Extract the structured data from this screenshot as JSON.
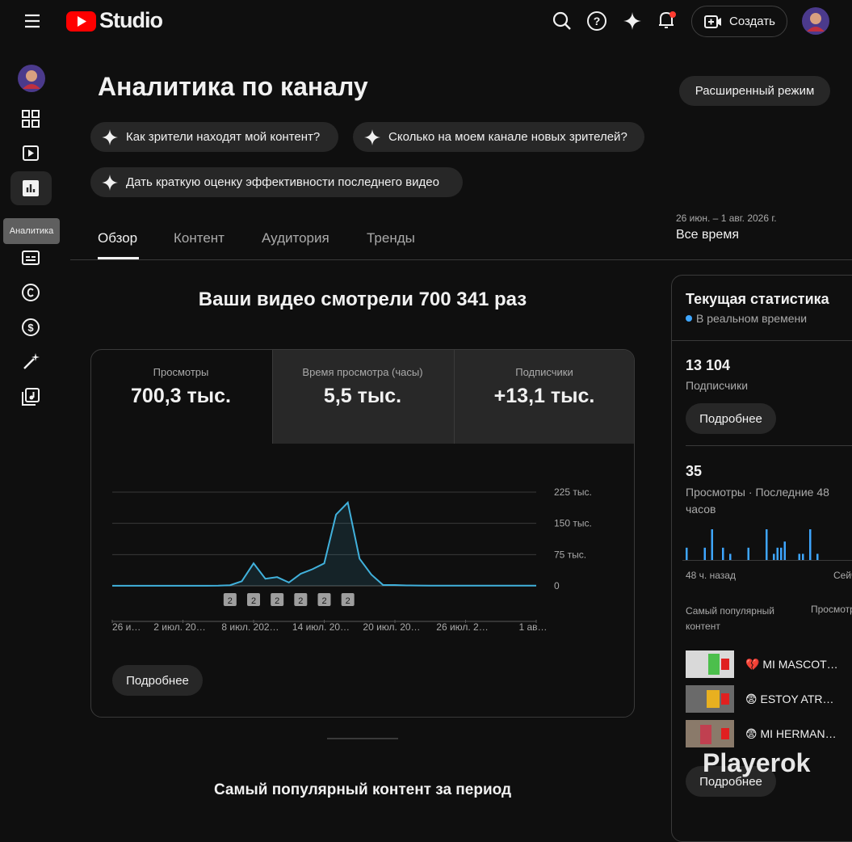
{
  "header": {
    "logo": "Studio",
    "create_button": "Создать"
  },
  "sidebar": {
    "tooltip": "Аналитика"
  },
  "page": {
    "title": "Аналитика по каналу",
    "advanced_button": "Расширенный режим",
    "chips": [
      "Как зрители находят мой контент?",
      "Сколько на моем канале новых зрителей?",
      "Дать краткую оценку эффективности последнего видео"
    ],
    "date_range": "26 июн. – 1 авг. 2026 г.",
    "period": "Все время",
    "tabs": [
      "Обзор",
      "Контент",
      "Аудитория",
      "Тренды"
    ],
    "headline": "Ваши видео смотрели 700 341 раз",
    "metrics": [
      {
        "label": "Просмотры",
        "value": "700,3 тыс."
      },
      {
        "label": "Время просмотра (часы)",
        "value": "5,5 тыс."
      },
      {
        "label": "Подписчики",
        "value": "+13,1 тыс."
      }
    ],
    "more_button": "Подробнее",
    "top_content_heading": "Самый популярный контент за период"
  },
  "realtime": {
    "title": "Текущая статистика",
    "subtitle": "В реальном времени",
    "subscribers": "13 104",
    "subscribers_label": "Подписчики",
    "more_button": "Подробнее",
    "views": "35",
    "views_label": "Просмотры · Последние 48 часов",
    "top_content_label": "Самый популярный контент",
    "views_column": "Просмотры",
    "videos": [
      "💔 MI MASCOT…",
      "😨 ESTOY ATR…",
      "😨 MI HERMAN…"
    ],
    "more_button_2": "Подробнее"
  },
  "watermark": "Playerok",
  "chart_data": [
    {
      "type": "area",
      "color": "#41b1dc",
      "grid": true,
      "categories": [
        "26 и…",
        null,
        null,
        null,
        null,
        null,
        "2 июл. 20…",
        null,
        null,
        null,
        null,
        null,
        "8 июл. 202…",
        null,
        null,
        null,
        null,
        null,
        "14 июл. 20…",
        null,
        null,
        null,
        null,
        null,
        "20 июл. 20…",
        null,
        null,
        null,
        null,
        null,
        "26 июл. 2…",
        null,
        null,
        null,
        null,
        null,
        "1 ав…"
      ],
      "values": [
        300,
        300,
        300,
        300,
        300,
        300,
        300,
        300,
        300,
        400,
        1500,
        11000,
        54000,
        17000,
        21000,
        8000,
        29000,
        40000,
        54000,
        171000,
        200000,
        65000,
        27000,
        2000,
        2000,
        1000,
        800,
        600,
        500,
        500,
        400,
        400,
        400,
        400,
        400,
        400,
        400
      ],
      "ylim": [
        0,
        225000
      ],
      "yticks": [
        0,
        {
          "value": 75000,
          "label": "75 тыс."
        },
        {
          "value": 150000,
          "label": "150 тыс."
        },
        {
          "value": 225000,
          "label": "225 тыс."
        }
      ],
      "annotations": [
        {
          "at": 10,
          "label": "2"
        },
        {
          "at": 12,
          "label": "2"
        },
        {
          "at": 14,
          "label": "2"
        },
        {
          "at": 16,
          "label": "2"
        },
        {
          "at": 18,
          "label": "2"
        },
        {
          "at": 20,
          "label": "2"
        }
      ]
    },
    {
      "type": "bar",
      "color": "#3ea6ff",
      "categories": [
        "48 ч. назад",
        null,
        null,
        null,
        null,
        null,
        null,
        null,
        null,
        null,
        null,
        null,
        null,
        null,
        null,
        null,
        null,
        null,
        null,
        null,
        null,
        null,
        null,
        null,
        null,
        null,
        null,
        null,
        null,
        null,
        null,
        null,
        null,
        null,
        null,
        null,
        null,
        null,
        null,
        null,
        null,
        null,
        null,
        null,
        null,
        null,
        null,
        "Сейчас"
      ],
      "values": [
        2,
        0,
        0,
        0,
        0,
        2,
        0,
        5,
        0,
        0,
        2,
        0,
        1,
        0,
        0,
        0,
        0,
        2,
        0,
        0,
        0,
        0,
        5,
        0,
        1,
        2,
        2,
        3,
        0,
        0,
        0,
        1,
        1,
        0,
        5,
        0,
        1,
        0,
        0,
        0,
        0,
        0,
        0,
        0,
        0,
        0,
        0,
        0
      ]
    }
  ]
}
